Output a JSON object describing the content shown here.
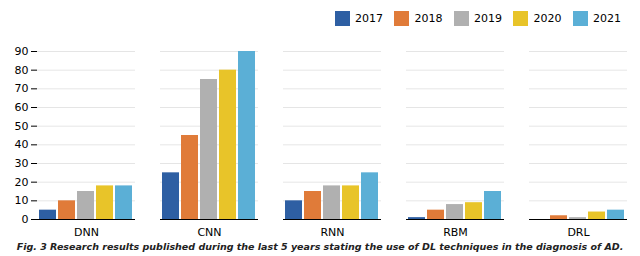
{
  "chart_data": {
    "type": "bar",
    "caption": "Fig. 3 Research results published during the last 5 years stating the use of DL techniques in the diagnosis of AD.",
    "categories": [
      "DNN",
      "CNN",
      "RNN",
      "RBM",
      "DRL"
    ],
    "series": [
      {
        "name": "2017",
        "color": "#2e5fa3",
        "values": [
          5,
          25,
          10,
          1,
          0
        ]
      },
      {
        "name": "2018",
        "color": "#e07b39",
        "values": [
          10,
          45,
          15,
          5,
          2
        ]
      },
      {
        "name": "2019",
        "color": "#b0b0b0",
        "values": [
          15,
          75,
          18,
          8,
          1
        ]
      },
      {
        "name": "2020",
        "color": "#e8c429",
        "values": [
          18,
          80,
          18,
          9,
          4
        ]
      },
      {
        "name": "2021",
        "color": "#5bafd6",
        "values": [
          18,
          90,
          25,
          15,
          5
        ]
      }
    ],
    "ylim": [
      0,
      90
    ],
    "yticks": [
      0,
      10,
      20,
      30,
      40,
      50,
      60,
      70,
      80,
      90
    ],
    "grid": true,
    "legend": "upper right"
  }
}
